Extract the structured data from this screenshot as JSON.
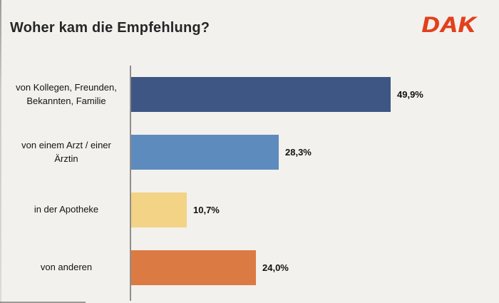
{
  "header": {
    "title": "Woher kam die Empfehlung?",
    "logo_text": "DAK",
    "logo_color": "#e2401c"
  },
  "chart_data": {
    "type": "bar",
    "orientation": "horizontal",
    "title": "Woher kam die Empfehlung?",
    "categories": [
      "von Kollegen, Freunden, Bekannten, Familie",
      "von einem Arzt / einer Ärztin",
      "in der Apotheke",
      "von anderen"
    ],
    "values": [
      49.9,
      28.3,
      10.7,
      24.0
    ],
    "value_labels": [
      "49,9%",
      "28,3%",
      "10,7%",
      "24,0%"
    ],
    "bar_colors": [
      "#3e5684",
      "#5d8bbd",
      "#f3d385",
      "#dc7a44"
    ],
    "xlim": [
      0,
      55
    ],
    "grid": false,
    "legend": false,
    "axis_line_color": "#8f8e8a",
    "unit": "%"
  }
}
